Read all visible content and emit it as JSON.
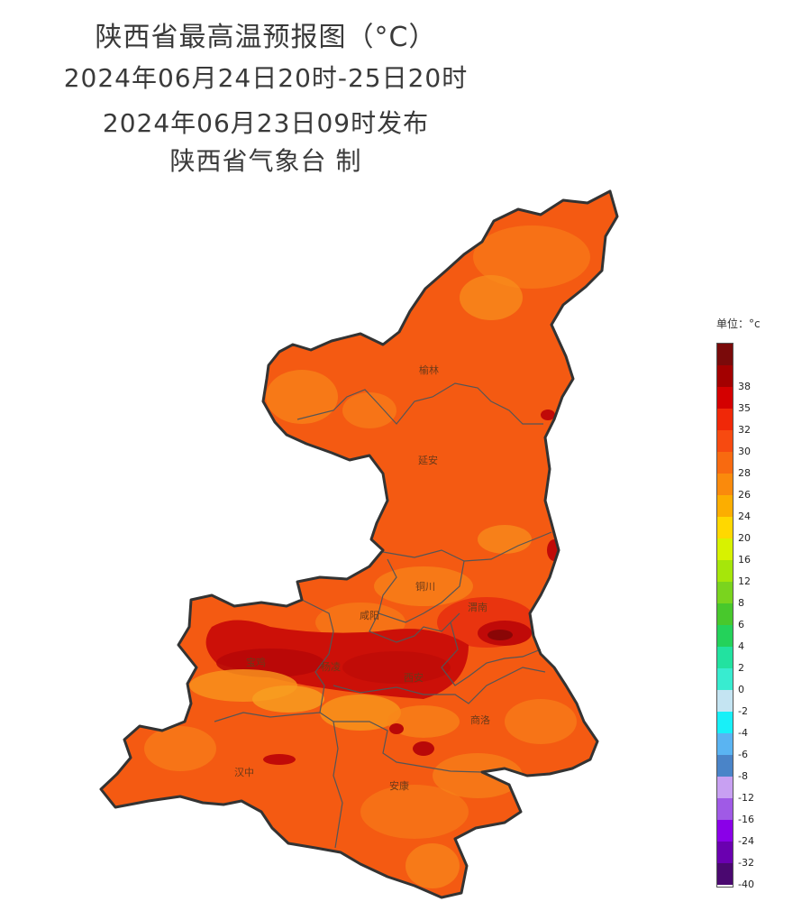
{
  "title": {
    "line1": "陕西省最高温预报图（°C）",
    "line2": "2024年06月24日20时-25日20时",
    "line3": "2024年06月23日09时发布",
    "line4": "陕西省气象台 制"
  },
  "legend": {
    "unit": "单位：°c",
    "levels": [
      {
        "label": "",
        "color": "#7a0a0a"
      },
      {
        "label": "38",
        "color": "#a30000"
      },
      {
        "label": "35",
        "color": "#d40000"
      },
      {
        "label": "32",
        "color": "#f02808"
      },
      {
        "label": "30",
        "color": "#f74a10"
      },
      {
        "label": "28",
        "color": "#f86a10"
      },
      {
        "label": "26",
        "color": "#fa8a0c"
      },
      {
        "label": "24",
        "color": "#fcae00"
      },
      {
        "label": "20",
        "color": "#ffd800"
      },
      {
        "label": "16",
        "color": "#d8f200"
      },
      {
        "label": "12",
        "color": "#a6e60a"
      },
      {
        "label": "8",
        "color": "#7ad41e"
      },
      {
        "label": "6",
        "color": "#48c82c"
      },
      {
        "label": "4",
        "color": "#24d25a"
      },
      {
        "label": "2",
        "color": "#22e2a0"
      },
      {
        "label": "0",
        "color": "#38ecd0"
      },
      {
        "label": "-2",
        "color": "#c4e4f2"
      },
      {
        "label": "-4",
        "color": "#18f0f8"
      },
      {
        "label": "-6",
        "color": "#5ab4f2"
      },
      {
        "label": "-8",
        "color": "#4a84c8"
      },
      {
        "label": "-12",
        "color": "#c8a0f2"
      },
      {
        "label": "-16",
        "color": "#a05ae6"
      },
      {
        "label": "-24",
        "color": "#8a00e8"
      },
      {
        "label": "-32",
        "color": "#6a00b0"
      },
      {
        "label": "-40",
        "color": "#4a0870"
      }
    ]
  },
  "cities": [
    {
      "id": "yulin",
      "name": "榆林"
    },
    {
      "id": "yanan",
      "name": "延安"
    },
    {
      "id": "tongchuan",
      "name": "铜川"
    },
    {
      "id": "weinan",
      "name": "渭南"
    },
    {
      "id": "xianyang",
      "name": "咸阳"
    },
    {
      "id": "baoji",
      "name": "宝鸡"
    },
    {
      "id": "yangling",
      "name": "杨凌"
    },
    {
      "id": "xian",
      "name": "西安"
    },
    {
      "id": "shangluo",
      "name": "商洛"
    },
    {
      "id": "hanzhong",
      "name": "汉中"
    },
    {
      "id": "ankang",
      "name": "安康"
    }
  ],
  "colors": {
    "base": "#f45a12",
    "hot": "#d41208",
    "hottest": "#960808",
    "warm": "#f8861a",
    "border": "#444444"
  }
}
